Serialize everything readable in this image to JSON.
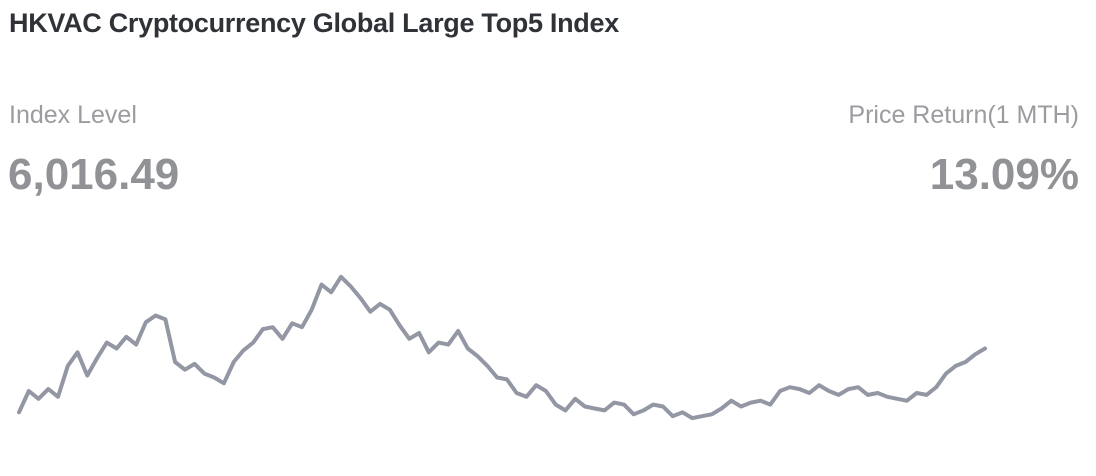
{
  "header": {
    "title": "HKVAC Cryptocurrency Global Large Top5 Index"
  },
  "stats": {
    "index_level_label": "Index Level",
    "index_level_value": "6,016.49",
    "price_return_label": "Price Return(1 MTH)",
    "price_return_value": "13.09%"
  },
  "colors": {
    "line": "#9396a3",
    "title": "#2f3338",
    "muted": "#909296"
  },
  "chart_data": {
    "type": "line",
    "title": "HKVAC Cryptocurrency Global Large Top5 Index",
    "xlabel": "",
    "ylabel": "",
    "grid": false,
    "legend": null,
    "note": "Sparkline without axes; values are relative screen heights (higher = larger index level)",
    "x": [
      0,
      1,
      2,
      3,
      4,
      5,
      6,
      7,
      8,
      9,
      10,
      11,
      12,
      13,
      14,
      15,
      16,
      17,
      18,
      19,
      20,
      21,
      22,
      23,
      24,
      25,
      26,
      27,
      28,
      29,
      30,
      31,
      32,
      33,
      34,
      35,
      36,
      37,
      38,
      39,
      40,
      41,
      42,
      43,
      44,
      45,
      46,
      47,
      48,
      49,
      50,
      51,
      52,
      53,
      54,
      55,
      56,
      57,
      58,
      59,
      60,
      61,
      62,
      63,
      64,
      65,
      66,
      67,
      68,
      69,
      70,
      71,
      72,
      73,
      74,
      75,
      76,
      77,
      78,
      79,
      80,
      81,
      82,
      83,
      84,
      85,
      86,
      87,
      88,
      89,
      90,
      91,
      92,
      93,
      94,
      95,
      96,
      97,
      98,
      99
    ],
    "values": [
      0,
      22,
      14,
      24,
      16,
      48,
      62,
      38,
      56,
      72,
      66,
      78,
      70,
      93,
      100,
      96,
      52,
      44,
      50,
      40,
      36,
      30,
      52,
      64,
      72,
      86,
      88,
      76,
      92,
      88,
      106,
      132,
      124,
      140,
      130,
      118,
      104,
      112,
      106,
      90,
      76,
      82,
      62,
      72,
      70,
      84,
      66,
      58,
      48,
      36,
      34,
      20,
      16,
      28,
      22,
      8,
      2,
      14,
      6,
      4,
      2,
      10,
      8,
      -2,
      2,
      8,
      6,
      -4,
      0,
      -6,
      -4,
      -2,
      4,
      12,
      6,
      10,
      12,
      8,
      22,
      26,
      24,
      20,
      28,
      22,
      18,
      24,
      26,
      18,
      20,
      16,
      14,
      12,
      20,
      18,
      26,
      40,
      48,
      52,
      60,
      66
    ],
    "ylim": [
      -10,
      145
    ]
  }
}
